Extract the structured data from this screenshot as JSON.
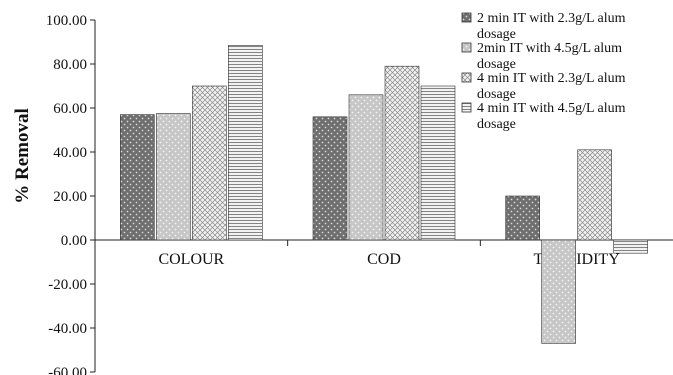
{
  "colors": {
    "axis": "#222222",
    "bar_stroke": "#333333",
    "series_fills": [
      "#6e6e6e",
      "#bdbdbd",
      "#e9e9e9",
      "#d8d8d8"
    ]
  },
  "chart_data": {
    "type": "bar",
    "title": "",
    "xlabel": "",
    "ylabel": "% Removal",
    "ylim": [
      -60,
      100
    ],
    "yticks": [
      -60,
      -40,
      -20,
      0,
      20,
      40,
      60,
      80,
      100
    ],
    "ytick_labels": [
      "-60.00",
      "-40.00",
      "-20.00",
      "0.00",
      "20.00",
      "40.00",
      "60.00",
      "80.00",
      "100.00"
    ],
    "grid": false,
    "legend_position": "top-right",
    "categories": [
      "COLOUR",
      "COD",
      "TURBIDITY"
    ],
    "series": [
      {
        "name": "2 min IT with 2.3g/L alum dosage",
        "values": [
          57,
          56,
          20
        ]
      },
      {
        "name": "2min IT with 4.5g/L alum dosage",
        "values": [
          57.5,
          66,
          -47
        ]
      },
      {
        "name": "4 min IT with 2.3g/L alum dosage",
        "values": [
          70,
          79,
          41
        ]
      },
      {
        "name": "4 min IT with 4.5g/L alum dosage",
        "values": [
          88.5,
          70,
          -6
        ]
      }
    ]
  }
}
